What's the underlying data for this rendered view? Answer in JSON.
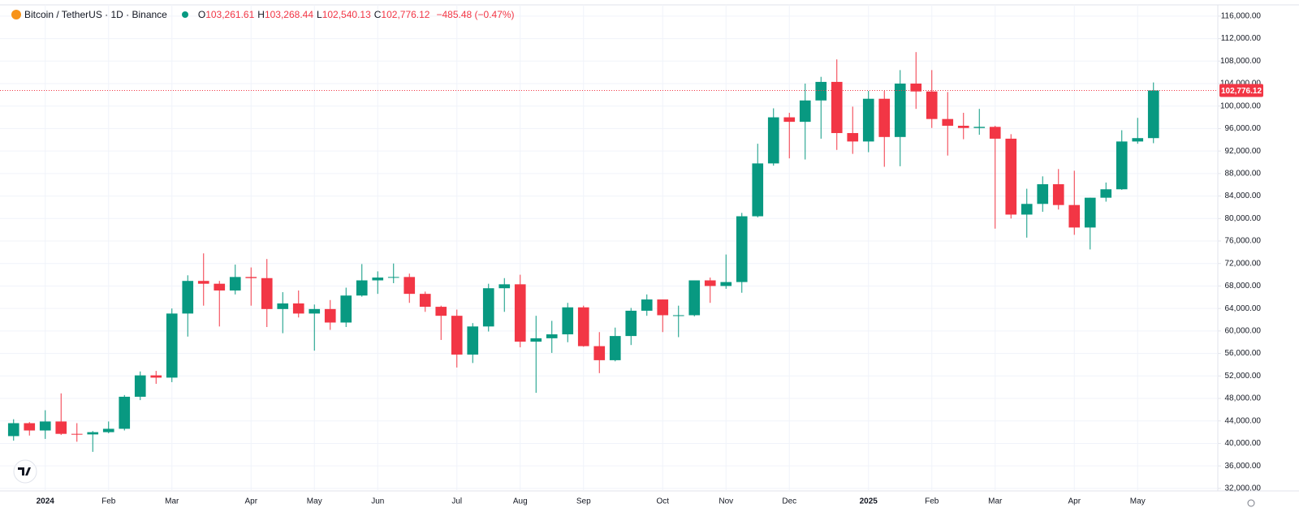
{
  "chart_data": {
    "type": "candlestick",
    "title": "Bitcoin / TetherUS · 1D · Binance",
    "ohlc_keys": [
      "O",
      "H",
      "L",
      "C"
    ],
    "ohlc_values": [
      "103,261.61",
      "103,268.44",
      "102,540.13",
      "102,776.12"
    ],
    "change": "−485.48 (−0.47%)",
    "categories": [
      null,
      null,
      "2024",
      null,
      null,
      null,
      "Feb",
      null,
      null,
      null,
      "Mar",
      null,
      null,
      null,
      null,
      "Apr",
      null,
      null,
      null,
      "May",
      null,
      null,
      null,
      "Jun",
      null,
      null,
      null,
      null,
      "Jul",
      null,
      null,
      null,
      "Aug",
      null,
      null,
      null,
      "Sep",
      null,
      null,
      null,
      null,
      "Oct",
      null,
      null,
      null,
      "Nov",
      null,
      null,
      null,
      "Dec",
      null,
      null,
      null,
      null,
      "2025",
      null,
      null,
      null,
      "Feb",
      null,
      null,
      null,
      "Mar",
      null,
      null,
      null,
      null,
      "Apr",
      null,
      null,
      null,
      "May",
      null
    ],
    "open": [
      41300,
      43600,
      42300,
      43900,
      41700,
      41600,
      42000,
      42600,
      48300,
      52100,
      51700,
      63100,
      68900,
      68400,
      67200,
      69600,
      69400,
      63900,
      64900,
      63100,
      63900,
      61500,
      66300,
      69000,
      69500,
      69600,
      66600,
      64300,
      62700,
      55800,
      60800,
      67600,
      68300,
      58100,
      58700,
      59400,
      64200,
      57300,
      54800,
      59100,
      63600,
      65600,
      62800,
      62800,
      69000,
      68000,
      68700,
      80400,
      89800,
      98000,
      97200,
      101000,
      104300,
      95200,
      93700,
      101300,
      94500,
      104000,
      102600,
      97700,
      96500,
      96100,
      96300,
      94200,
      80700,
      82600,
      86100,
      82400,
      78400,
      83700,
      85200,
      93700,
      94300
    ],
    "high": [
      44300,
      43800,
      45900,
      48900,
      43600,
      42200,
      43900,
      48600,
      52800,
      52900,
      64000,
      69900,
      73800,
      68900,
      71800,
      71300,
      72800,
      66900,
      67200,
      64700,
      65500,
      67700,
      71900,
      70600,
      72000,
      70200,
      67000,
      64500,
      63800,
      61400,
      68400,
      69400,
      70000,
      62700,
      61800,
      65000,
      64500,
      59800,
      60600,
      64100,
      66500,
      65600,
      64500,
      69000,
      69500,
      73600,
      81000,
      93300,
      99600,
      98800,
      104000,
      105200,
      108300,
      99900,
      102700,
      102700,
      106400,
      109600,
      106400,
      102500,
      98800,
      99500,
      96500,
      95000,
      85300,
      87500,
      88800,
      88500,
      83700,
      86400,
      95700,
      97900,
      104200
    ],
    "low": [
      40500,
      41400,
      40800,
      41500,
      40300,
      38500,
      41800,
      42300,
      47700,
      50600,
      50900,
      59000,
      64500,
      60800,
      66500,
      64500,
      60700,
      59600,
      62400,
      56500,
      60200,
      60700,
      66100,
      66600,
      68500,
      65000,
      63400,
      58400,
      53500,
      54300,
      59900,
      63400,
      57100,
      49000,
      56100,
      58000,
      57200,
      52500,
      54600,
      57500,
      62700,
      59800,
      58900,
      62600,
      65000,
      67500,
      66800,
      80200,
      89400,
      90700,
      90500,
      94200,
      92200,
      91500,
      91800,
      89200,
      89300,
      99500,
      96100,
      91200,
      94100,
      94900,
      78200,
      80000,
      76600,
      81200,
      81600,
      77100,
      74500,
      83000,
      85100,
      93300,
      93400
    ],
    "close": [
      43600,
      42300,
      43900,
      41700,
      41600,
      42000,
      42600,
      48300,
      52100,
      51700,
      63100,
      68900,
      68400,
      67200,
      69600,
      69400,
      63900,
      64900,
      63100,
      63900,
      61500,
      66300,
      69000,
      69500,
      69600,
      66600,
      64300,
      62700,
      55800,
      60800,
      67600,
      68300,
      58100,
      58700,
      59400,
      64200,
      57300,
      54800,
      59100,
      63600,
      65600,
      62800,
      62800,
      69000,
      68000,
      68700,
      80400,
      89800,
      98000,
      97200,
      101000,
      104300,
      95200,
      93700,
      101300,
      94500,
      104000,
      102600,
      97700,
      96500,
      96100,
      96300,
      94200,
      80700,
      82600,
      86100,
      82400,
      78400,
      83700,
      85200,
      93700,
      94300,
      102776.12
    ],
    "up_color": "#089981",
    "down_color": "#f23645",
    "last_price": {
      "value": 102776.12,
      "label": "102,776.12"
    },
    "ylim": [
      31550,
      118000
    ],
    "yticks": [
      {
        "value": 32000,
        "label": "32,000.00"
      },
      {
        "value": 36000,
        "label": "36,000.00"
      },
      {
        "value": 40000,
        "label": "40,000.00"
      },
      {
        "value": 44000,
        "label": "44,000.00"
      },
      {
        "value": 48000,
        "label": "48,000.00"
      },
      {
        "value": 52000,
        "label": "52,000.00"
      },
      {
        "value": 56000,
        "label": "56,000.00"
      },
      {
        "value": 60000,
        "label": "60,000.00"
      },
      {
        "value": 64000,
        "label": "64,000.00"
      },
      {
        "value": 68000,
        "label": "68,000.00"
      },
      {
        "value": 72000,
        "label": "72,000.00"
      },
      {
        "value": 76000,
        "label": "76,000.00"
      },
      {
        "value": 80000,
        "label": "80,000.00"
      },
      {
        "value": 84000,
        "label": "84,000.00"
      },
      {
        "value": 88000,
        "label": "88,000.00"
      },
      {
        "value": 92000,
        "label": "92,000.00"
      },
      {
        "value": 96000,
        "label": "96,000.00"
      },
      {
        "value": 100000,
        "label": "100,000.00"
      },
      {
        "value": 104000,
        "label": "104,000.00"
      },
      {
        "value": 108000,
        "label": "108,000.00"
      },
      {
        "value": 112000,
        "label": "112,000.00"
      },
      {
        "value": 116000,
        "label": "116,000.00"
      }
    ],
    "grid": true
  }
}
